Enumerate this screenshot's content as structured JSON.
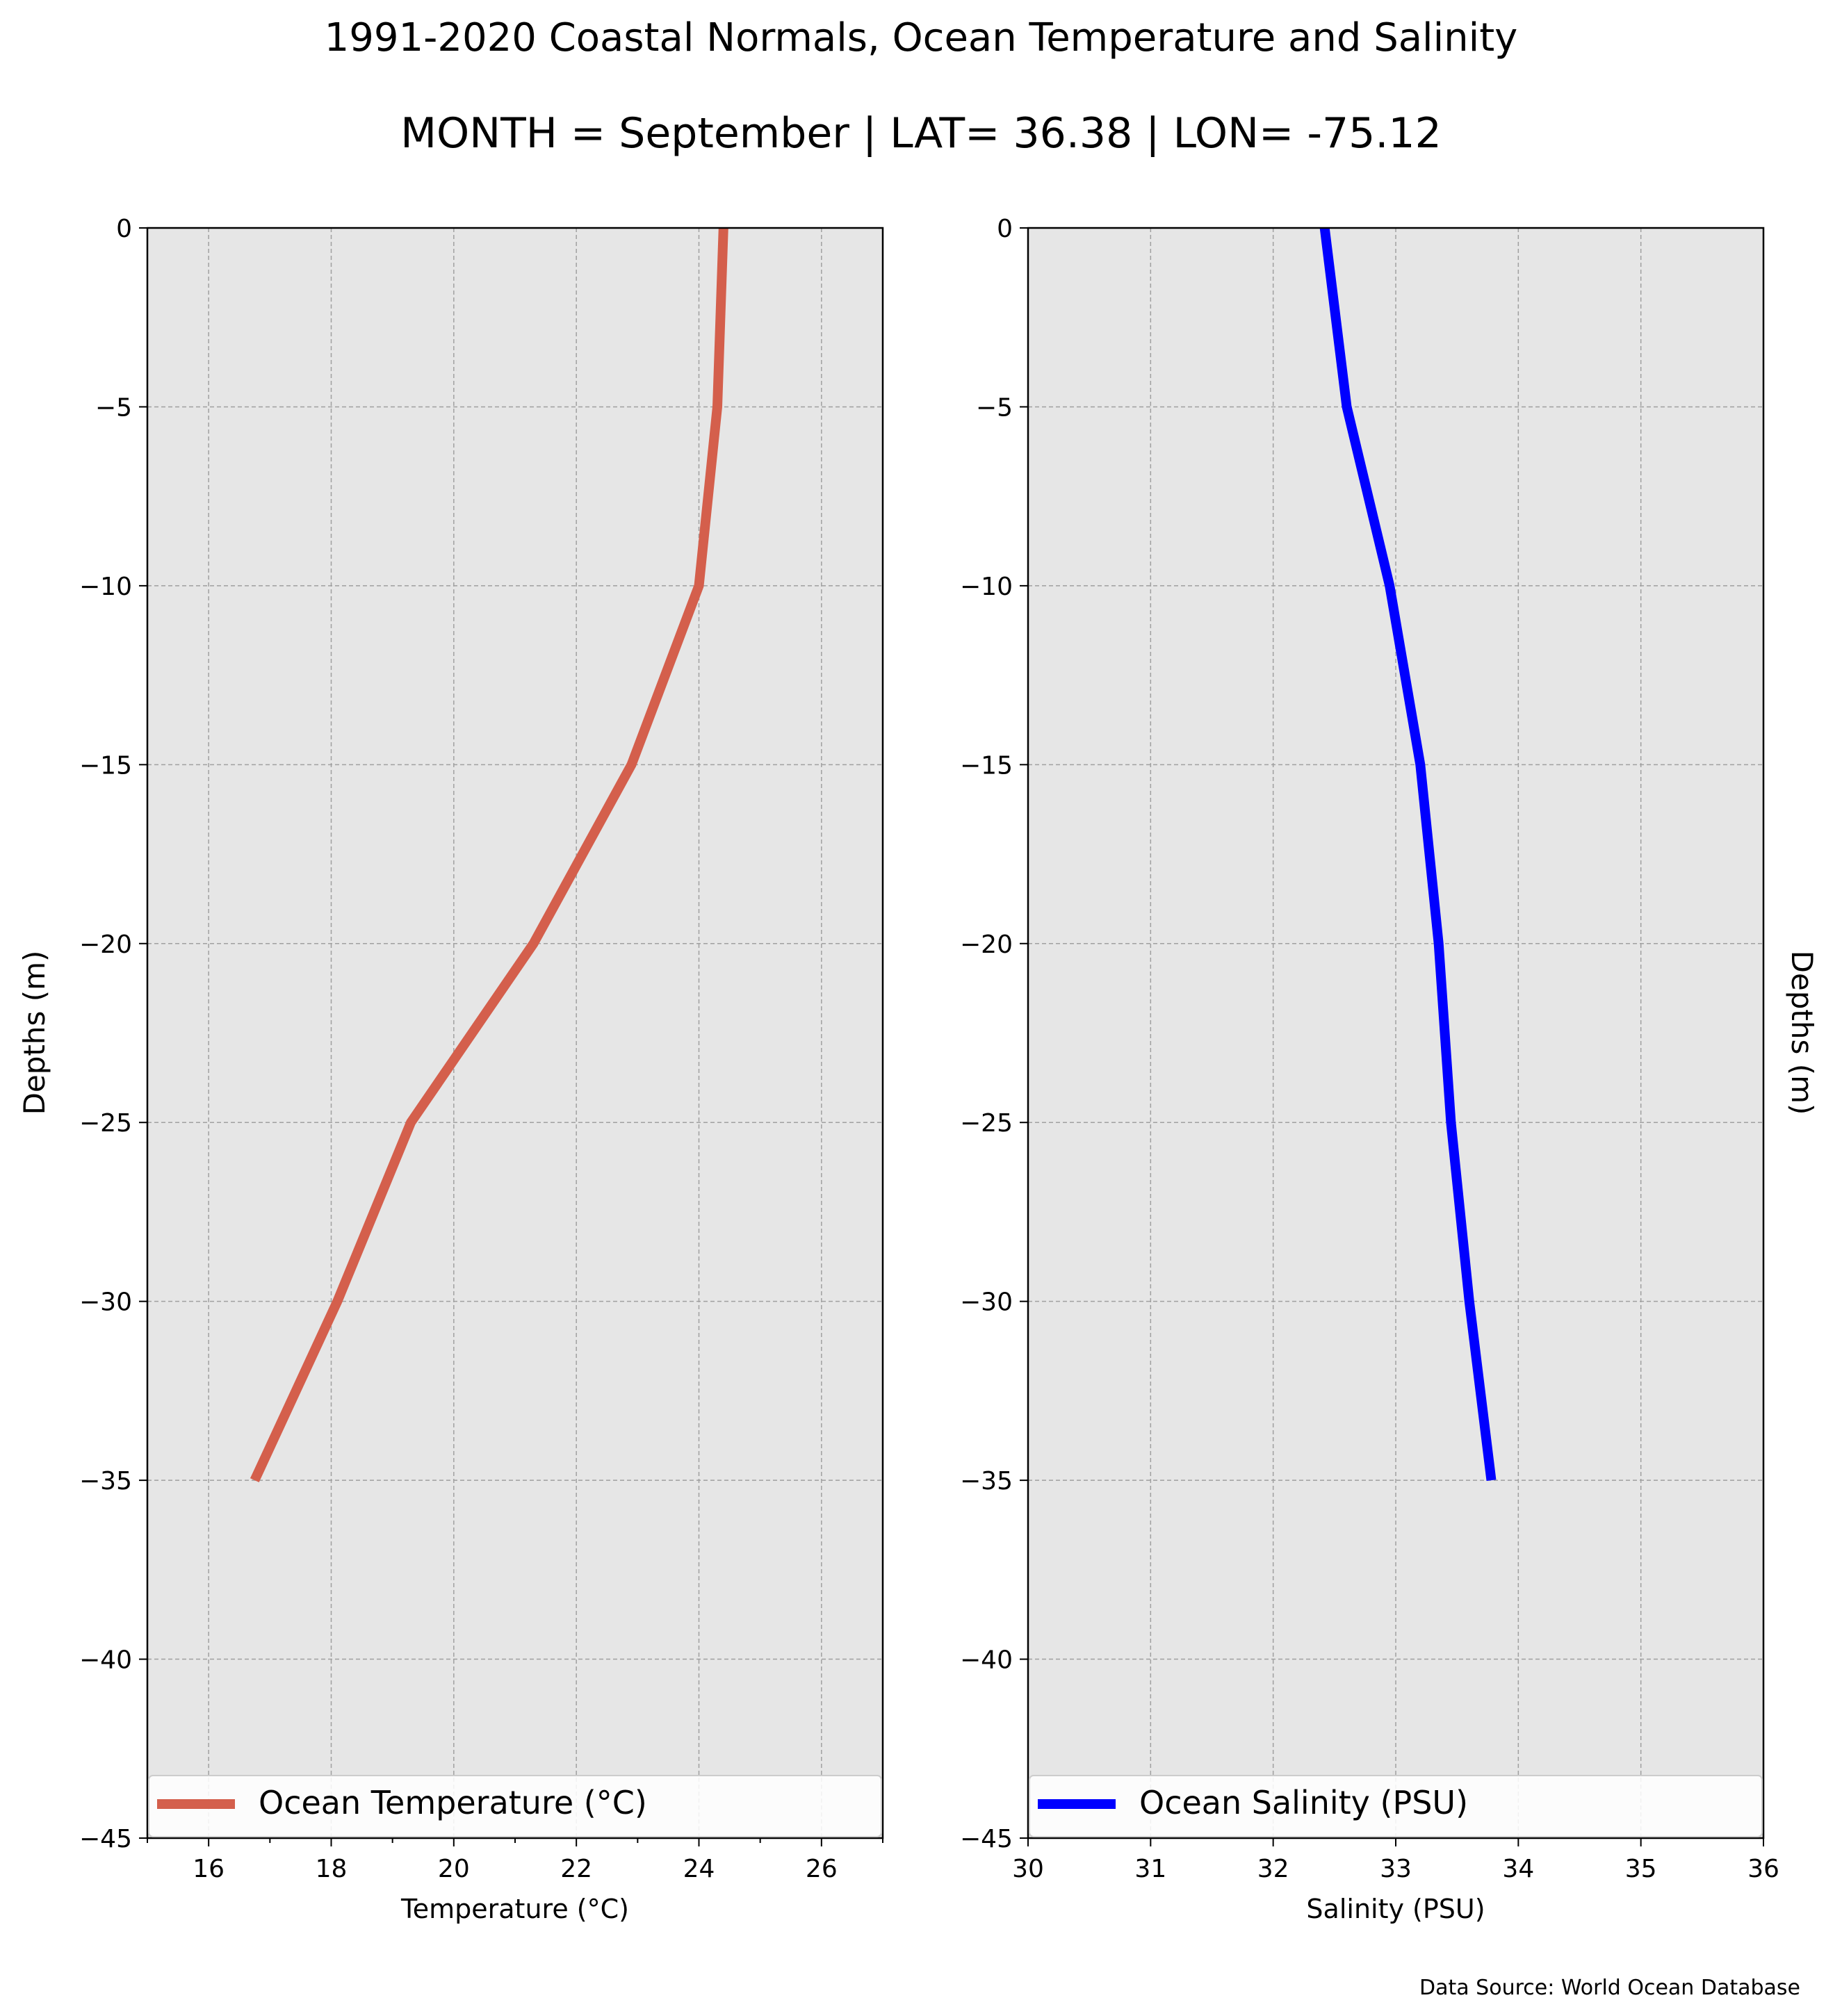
{
  "figure": {
    "title_line1": "1991-2020 Coastal Normals, Ocean Temperature and Salinity",
    "title_line2": "MONTH = September | LAT= 36.38 | LON= -75.12",
    "source_note": "Data Source: World Ocean Database"
  },
  "chart_data": [
    {
      "type": "line",
      "xlabel": "Temperature ($^\\circ$C)",
      "xlabel_display": "Temperature (°C)",
      "ylabel": "Depths (m)",
      "xlim": [
        15,
        27
      ],
      "ylim": [
        -45,
        0
      ],
      "xticks": [
        16,
        18,
        20,
        22,
        24,
        26
      ],
      "yticks": [
        0,
        -5,
        -10,
        -15,
        -20,
        -25,
        -30,
        -35,
        -40,
        -45
      ],
      "grid": true,
      "legend_position": "bottom",
      "series": [
        {
          "name": "Ocean Temperature (°C)",
          "color": "#d45f4c",
          "x": [
            24.4,
            24.3,
            24.0,
            22.9,
            21.3,
            19.3,
            18.1,
            16.75
          ],
          "y": [
            0,
            -5,
            -10,
            -15,
            -20,
            -25,
            -30,
            -35
          ]
        }
      ]
    },
    {
      "type": "line",
      "xlabel": "Salinity (PSU)",
      "ylabel": "Depths (m)",
      "xlim": [
        30,
        36
      ],
      "ylim": [
        -45,
        0
      ],
      "xticks": [
        30,
        31,
        32,
        33,
        34,
        35,
        36
      ],
      "yticks": [
        0,
        -5,
        -10,
        -15,
        -20,
        -25,
        -30,
        -35,
        -40,
        -45
      ],
      "grid": true,
      "legend_position": "bottom",
      "series": [
        {
          "name": "Ocean Salinity (PSU)",
          "color": "#0000ff",
          "x": [
            32.42,
            32.6,
            32.95,
            33.2,
            33.35,
            33.45,
            33.6,
            33.78
          ],
          "y": [
            0,
            -5,
            -10,
            -15,
            -20,
            -25,
            -30,
            -35
          ]
        }
      ]
    }
  ]
}
